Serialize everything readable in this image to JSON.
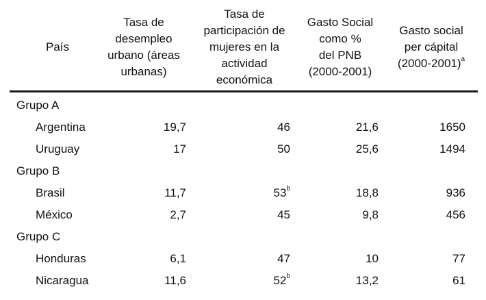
{
  "table": {
    "headers": {
      "country": "País",
      "unemployment": [
        "Tasa de",
        "desempleo",
        "urbano (áreas",
        "urbanas)"
      ],
      "women": [
        "Tasa de",
        "participación de",
        "mujeres en la",
        "actividad",
        "económica"
      ],
      "social_pnb": [
        "Gasto Social",
        "como %",
        "del PNB",
        "(2000-2001)"
      ],
      "social_pc": [
        "Gasto social",
        "per cápital",
        "(2000-2001)"
      ],
      "social_pc_sup": "a"
    },
    "groups": [
      {
        "name": "Grupo A",
        "rows": [
          {
            "country": "Argentina",
            "unemployment": "19,7",
            "women": "46",
            "women_sup": "",
            "social_pnb": "21,6",
            "social_pc": "1650"
          },
          {
            "country": "Uruguay",
            "unemployment": "17",
            "women": "50",
            "women_sup": "",
            "social_pnb": "25,6",
            "social_pc": "1494"
          }
        ]
      },
      {
        "name": "Grupo B",
        "rows": [
          {
            "country": "Brasil",
            "unemployment": "11,7",
            "women": "53",
            "women_sup": "b",
            "social_pnb": "18,8",
            "social_pc": "936"
          },
          {
            "country": "México",
            "unemployment": "2,7",
            "women": "45",
            "women_sup": "",
            "social_pnb": "9,8",
            "social_pc": "456"
          }
        ]
      },
      {
        "name": "Grupo C",
        "rows": [
          {
            "country": "Honduras",
            "unemployment": "6,1",
            "women": "47",
            "women_sup": "",
            "social_pnb": "10",
            "social_pc": "77"
          },
          {
            "country": "Nicaragua",
            "unemployment": "11,6",
            "women": "52",
            "women_sup": "b",
            "social_pnb": "13,2",
            "social_pc": "61"
          }
        ]
      }
    ]
  }
}
